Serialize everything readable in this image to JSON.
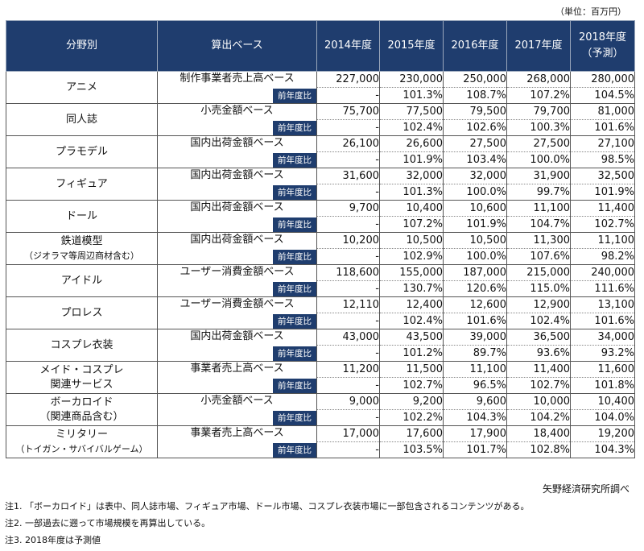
{
  "unit_label": "（単位：百万円）",
  "headers": {
    "category": "分野別",
    "base": "算出ベース",
    "years": [
      "2014年度",
      "2015年度",
      "2016年度",
      "2017年度"
    ],
    "forecast_year": "2018年度",
    "forecast_note": "（予測）"
  },
  "yoy_label": "前年度比",
  "rows": [
    {
      "category": [
        "アニメ"
      ],
      "base": "制作事業者売上高ベース",
      "values": [
        "227,000",
        "230,000",
        "250,000",
        "268,000",
        "280,000"
      ],
      "yoy": [
        "-",
        "101.3%",
        "108.7%",
        "107.2%",
        "104.5%"
      ]
    },
    {
      "category": [
        "同人誌"
      ],
      "base": "小売金額ベース",
      "values": [
        "75,700",
        "77,500",
        "79,500",
        "79,700",
        "81,000"
      ],
      "yoy": [
        "-",
        "102.4%",
        "102.6%",
        "100.3%",
        "101.6%"
      ]
    },
    {
      "category": [
        "プラモデル"
      ],
      "base": "国内出荷金額ベース",
      "values": [
        "26,100",
        "26,600",
        "27,500",
        "27,500",
        "27,100"
      ],
      "yoy": [
        "-",
        "101.9%",
        "103.4%",
        "100.0%",
        "98.5%"
      ]
    },
    {
      "category": [
        "フィギュア"
      ],
      "base": "国内出荷金額ベース",
      "values": [
        "31,600",
        "32,000",
        "32,000",
        "31,900",
        "32,500"
      ],
      "yoy": [
        "-",
        "101.3%",
        "100.0%",
        "99.7%",
        "101.9%"
      ]
    },
    {
      "category": [
        "ドール"
      ],
      "base": "国内出荷金額ベース",
      "values": [
        "9,700",
        "10,400",
        "10,600",
        "11,100",
        "11,400"
      ],
      "yoy": [
        "-",
        "107.2%",
        "101.9%",
        "104.7%",
        "102.7%"
      ]
    },
    {
      "category": [
        "鉄道模型",
        "（ジオラマ等周辺商材含む）"
      ],
      "base": "国内出荷金額ベース",
      "values": [
        "10,200",
        "10,500",
        "10,500",
        "11,300",
        "11,100"
      ],
      "yoy": [
        "-",
        "102.9%",
        "100.0%",
        "107.6%",
        "98.2%"
      ]
    },
    {
      "category": [
        "アイドル"
      ],
      "base": "ユーザー消費金額ベース",
      "values": [
        "118,600",
        "155,000",
        "187,000",
        "215,000",
        "240,000"
      ],
      "yoy": [
        "-",
        "130.7%",
        "120.6%",
        "115.0%",
        "111.6%"
      ]
    },
    {
      "category": [
        "プロレス"
      ],
      "base": "ユーザー消費金額ベース",
      "values": [
        "12,110",
        "12,400",
        "12,600",
        "12,900",
        "13,100"
      ],
      "yoy": [
        "-",
        "102.4%",
        "101.6%",
        "102.4%",
        "101.6%"
      ]
    },
    {
      "category": [
        "コスプレ衣装"
      ],
      "base": "国内出荷金額ベース",
      "values": [
        "43,000",
        "43,500",
        "39,000",
        "36,500",
        "34,000"
      ],
      "yoy": [
        "-",
        "101.2%",
        "89.7%",
        "93.6%",
        "93.2%"
      ]
    },
    {
      "category": [
        "メイド・コスプレ",
        "関連サービス"
      ],
      "base": "事業者売上高ベース",
      "values": [
        "11,200",
        "11,500",
        "11,100",
        "11,400",
        "11,600"
      ],
      "yoy": [
        "-",
        "102.7%",
        "96.5%",
        "102.7%",
        "101.8%"
      ]
    },
    {
      "category": [
        "ボーカロイド",
        "（関連商品含む）"
      ],
      "base": "小売金額ベース",
      "values": [
        "9,000",
        "9,200",
        "9,600",
        "10,000",
        "10,400"
      ],
      "yoy": [
        "-",
        "102.2%",
        "104.3%",
        "104.2%",
        "104.0%"
      ]
    },
    {
      "category": [
        "ミリタリー",
        "（トイガン・サバイバルゲーム）"
      ],
      "base": "事業者売上高ベース",
      "values": [
        "17,000",
        "17,600",
        "17,900",
        "18,400",
        "19,200"
      ],
      "yoy": [
        "-",
        "103.5%",
        "101.7%",
        "102.8%",
        "104.3%"
      ]
    }
  ],
  "source": "矢野経済研究所調べ",
  "notes": [
    "注1. 「ボーカロイド」は表中、同人誌市場、フィギュア市場、ドール市場、コスプレ衣装市場に一部包含されるコンテンツがある。",
    "注2. 一部過去に遡って市場規模を再算出している。",
    "注3. 2018年度は予測値"
  ]
}
